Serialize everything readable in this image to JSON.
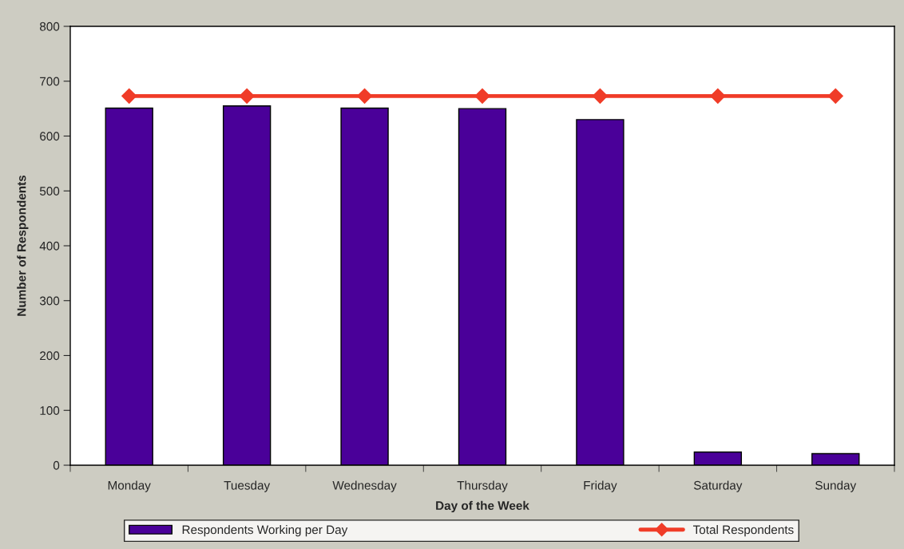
{
  "chart_data": {
    "type": "bar",
    "xlabel": "Day of the Week",
    "ylabel": "Number of Respondents",
    "categories": [
      "Monday",
      "Tuesday",
      "Wednesday",
      "Thursday",
      "Friday",
      "Saturday",
      "Sunday"
    ],
    "series": [
      {
        "name": "Respondents Working per Day",
        "color": "#4a0099",
        "values": [
          651,
          655,
          651,
          650,
          630,
          24,
          21
        ]
      },
      {
        "name": "Total Respondents",
        "type": "line",
        "color": "#f03c28",
        "values": [
          673,
          673,
          673,
          673,
          673,
          673,
          673
        ]
      }
    ],
    "ylim": [
      0,
      800
    ],
    "yticks": [
      0,
      100,
      200,
      300,
      400,
      500,
      600,
      700,
      800
    ],
    "grid": false,
    "legend": "bottom",
    "marker": "diamond",
    "line_style": "solid"
  }
}
